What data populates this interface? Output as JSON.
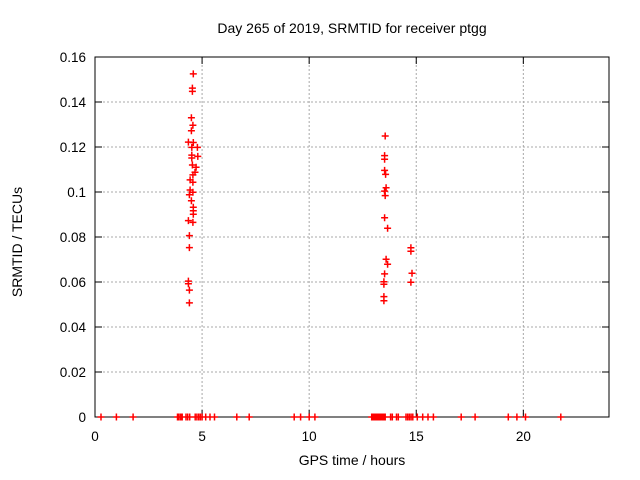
{
  "window": {
    "background": "#ffffff"
  },
  "chart_data": {
    "type": "scatter",
    "title": "Day 265 of 2019, SRMTID for receiver ptgg",
    "xlabel": "GPS time / hours",
    "ylabel": "SRMTID / TECUs",
    "xlim": [
      0,
      24
    ],
    "ylim": [
      0,
      0.16
    ],
    "xticks": [
      0,
      5,
      10,
      15,
      20
    ],
    "xtick_labels": [
      "0",
      "5",
      "10",
      "15",
      "20"
    ],
    "yticks": [
      0,
      0.02,
      0.04,
      0.06,
      0.08,
      0.1,
      0.12,
      0.14,
      0.16
    ],
    "ytick_labels": [
      "0",
      "0.02",
      "0.04",
      "0.06",
      "0.08",
      "0.1",
      "0.12",
      "0.14",
      "0.16"
    ],
    "grid": true,
    "legend_position": "none",
    "marker": "plus",
    "colors": {
      "marker": "#ff0000",
      "axis": "#000000",
      "grid": "#a8a8a8",
      "text": "#000000"
    },
    "series": [
      {
        "name": "SRMTID",
        "points": [
          [
            4.59,
            0.1525
          ],
          [
            4.55,
            0.1462
          ],
          [
            4.55,
            0.1447
          ],
          [
            4.5,
            0.133
          ],
          [
            4.57,
            0.1297
          ],
          [
            4.5,
            0.1272
          ],
          [
            4.36,
            0.1222
          ],
          [
            4.59,
            0.122
          ],
          [
            4.52,
            0.1198
          ],
          [
            4.78,
            0.1198
          ],
          [
            4.52,
            0.1164
          ],
          [
            4.8,
            0.1158
          ],
          [
            4.52,
            0.1151
          ],
          [
            4.55,
            0.112
          ],
          [
            4.72,
            0.111
          ],
          [
            4.67,
            0.1088
          ],
          [
            4.57,
            0.1076
          ],
          [
            4.44,
            0.1054
          ],
          [
            4.57,
            0.1043
          ],
          [
            4.44,
            0.1009
          ],
          [
            4.57,
            0.0999
          ],
          [
            4.41,
            0.0988
          ],
          [
            4.5,
            0.0961
          ],
          [
            4.59,
            0.0932
          ],
          [
            4.59,
            0.0917
          ],
          [
            4.59,
            0.0901
          ],
          [
            4.36,
            0.0873
          ],
          [
            4.57,
            0.0865
          ],
          [
            4.41,
            0.0806
          ],
          [
            4.41,
            0.0753
          ],
          [
            4.36,
            0.0604
          ],
          [
            4.36,
            0.0592
          ],
          [
            4.41,
            0.0564
          ],
          [
            4.41,
            0.0507
          ],
          [
            13.55,
            0.1249
          ],
          [
            13.52,
            0.1162
          ],
          [
            13.52,
            0.1146
          ],
          [
            13.52,
            0.1096
          ],
          [
            13.57,
            0.1078
          ],
          [
            13.59,
            0.1019
          ],
          [
            13.52,
            0.1004
          ],
          [
            13.55,
            0.0984
          ],
          [
            13.52,
            0.0886
          ],
          [
            13.66,
            0.0839
          ],
          [
            14.75,
            0.0752
          ],
          [
            14.75,
            0.0737
          ],
          [
            13.59,
            0.0701
          ],
          [
            13.66,
            0.0679
          ],
          [
            13.52,
            0.0636
          ],
          [
            14.8,
            0.0639
          ],
          [
            13.49,
            0.0601
          ],
          [
            13.49,
            0.059
          ],
          [
            14.75,
            0.0599
          ],
          [
            13.49,
            0.0535
          ],
          [
            13.49,
            0.0517
          ],
          [
            0.28,
            0
          ],
          [
            1.0,
            0
          ],
          [
            1.78,
            0
          ],
          [
            3.85,
            0
          ],
          [
            3.92,
            0
          ],
          [
            4.0,
            0
          ],
          [
            4.07,
            0
          ],
          [
            4.25,
            0
          ],
          [
            4.33,
            0
          ],
          [
            4.42,
            0
          ],
          [
            4.68,
            0
          ],
          [
            4.76,
            0
          ],
          [
            4.84,
            0
          ],
          [
            4.92,
            0
          ],
          [
            5.0,
            0
          ],
          [
            5.17,
            0
          ],
          [
            5.37,
            0
          ],
          [
            5.58,
            0
          ],
          [
            6.62,
            0
          ],
          [
            7.2,
            0
          ],
          [
            9.3,
            0
          ],
          [
            9.6,
            0
          ],
          [
            10.0,
            0
          ],
          [
            10.27,
            0
          ],
          [
            12.92,
            0
          ],
          [
            12.99,
            0
          ],
          [
            13.06,
            0
          ],
          [
            13.13,
            0
          ],
          [
            13.2,
            0
          ],
          [
            13.27,
            0
          ],
          [
            13.34,
            0
          ],
          [
            13.41,
            0
          ],
          [
            13.48,
            0
          ],
          [
            13.55,
            0
          ],
          [
            13.8,
            0
          ],
          [
            13.88,
            0
          ],
          [
            14.08,
            0
          ],
          [
            14.16,
            0
          ],
          [
            14.52,
            0
          ],
          [
            14.6,
            0
          ],
          [
            14.68,
            0
          ],
          [
            14.76,
            0
          ],
          [
            14.84,
            0
          ],
          [
            15.05,
            0
          ],
          [
            15.3,
            0
          ],
          [
            15.55,
            0
          ],
          [
            15.8,
            0
          ],
          [
            17.1,
            0
          ],
          [
            17.75,
            0
          ],
          [
            19.3,
            0
          ],
          [
            19.7,
            0
          ],
          [
            20.1,
            0
          ],
          [
            21.75,
            0
          ]
        ]
      }
    ]
  }
}
